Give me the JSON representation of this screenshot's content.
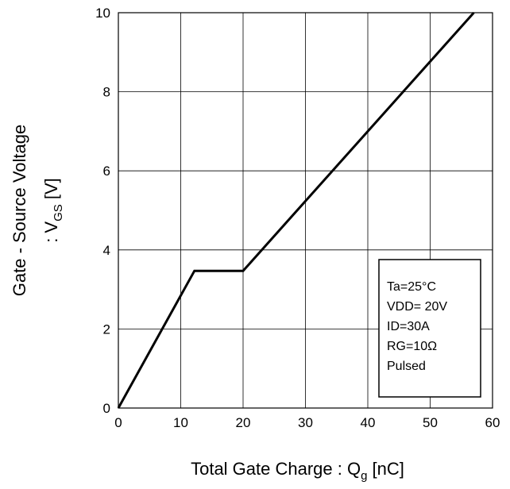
{
  "chart_data": {
    "type": "line",
    "title": "",
    "xlabel": {
      "main": "Total Gate Charge : Q",
      "sub": "g",
      "unit": " [nC]"
    },
    "ylabel": {
      "line1": "Gate - Source Voltage",
      "line2_prefix": ": V",
      "line2_sub": "GS",
      "line2_unit": " [V]"
    },
    "xlim": [
      0,
      60
    ],
    "ylim": [
      0,
      10
    ],
    "xticks": [
      0,
      10,
      20,
      30,
      40,
      50,
      60
    ],
    "yticks": [
      0,
      2,
      4,
      6,
      8,
      10
    ],
    "grid": true,
    "series": [
      {
        "x": [
          0,
          12.2,
          20,
          57
        ],
        "y": [
          0,
          3.47,
          3.47,
          10
        ],
        "color": "#000000"
      }
    ],
    "legend_box": {
      "placement": "bottom-right",
      "lines": [
        "Ta=25°C",
        "VDD= 20V",
        "ID=30A",
        "RG=10Ω",
        "Pulsed"
      ]
    }
  }
}
